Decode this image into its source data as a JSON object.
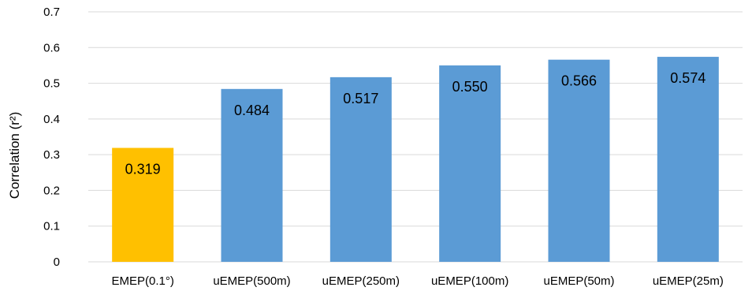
{
  "chart_data": {
    "type": "bar",
    "categories": [
      "EMEP(0.1°)",
      "uEMEP(500m)",
      "uEMEP(250m)",
      "uEMEP(100m)",
      "uEMEP(50m)",
      "uEMEP(25m)"
    ],
    "values": [
      0.319,
      0.484,
      0.517,
      0.55,
      0.566,
      0.574
    ],
    "data_labels": [
      "0.319",
      "0.484",
      "0.517",
      "0.550",
      "0.566",
      "0.574"
    ],
    "ylabel": "Correlation (r²)",
    "xlabel": "",
    "ylim": [
      0,
      0.7
    ],
    "yticks": [
      0,
      0.1,
      0.2,
      0.3,
      0.4,
      0.5,
      0.6,
      0.7
    ],
    "ytick_labels": [
      "0",
      "0.1",
      "0.2",
      "0.3",
      "0.4",
      "0.5",
      "0.6",
      "0.7"
    ],
    "grid": true,
    "legend": "none",
    "colors": [
      "#ffc000",
      "#5b9bd5",
      "#5b9bd5",
      "#5b9bd5",
      "#5b9bd5",
      "#5b9bd5"
    ],
    "grid_color": "#d9d9d9"
  }
}
